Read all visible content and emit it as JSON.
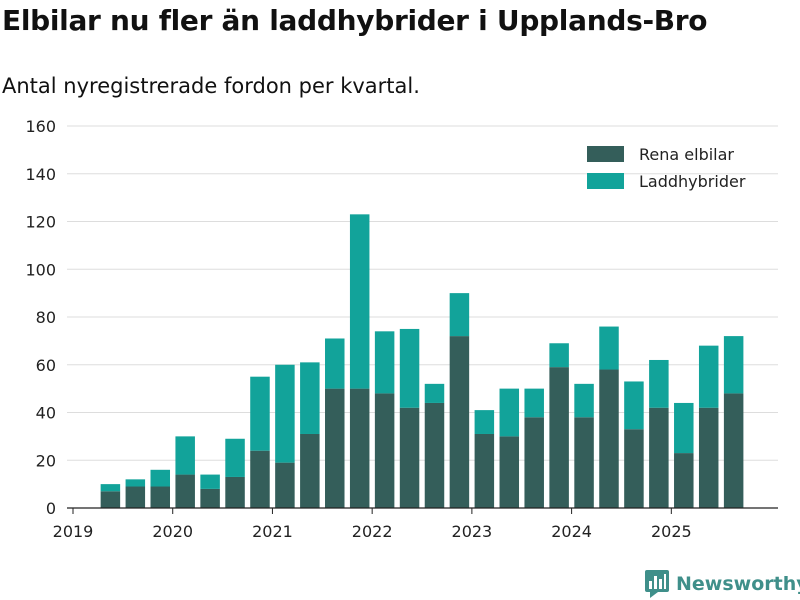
{
  "title": "Elbilar nu fler än laddhybrider i Upplands-Bro",
  "subtitle": "Antal nyregistrerade fordon per kvartal.",
  "brand": {
    "name": "Newsworthy",
    "icon": "newsworthy-logo-icon"
  },
  "colors": {
    "rena_elbilar": "#345e5a",
    "laddhybrider": "#12a39a",
    "grid": "#dddddd",
    "brand": "#3f8f8a"
  },
  "chart_data": {
    "type": "bar",
    "stacked": true,
    "legend_position": "top-right",
    "grid": true,
    "ylim": [
      0,
      160
    ],
    "yticks": [
      0,
      20,
      40,
      60,
      80,
      100,
      120,
      140,
      160
    ],
    "xticks": [
      "2019",
      "2020",
      "2021",
      "2022",
      "2023",
      "2024",
      "2025"
    ],
    "xlabel": "",
    "ylabel": "",
    "categories": [
      "2019 Q2",
      "2019 Q3",
      "2019 Q4",
      "2020 Q1",
      "2020 Q2",
      "2020 Q3",
      "2020 Q4",
      "2021 Q1",
      "2021 Q2",
      "2021 Q3",
      "2021 Q4",
      "2022 Q1",
      "2022 Q2",
      "2022 Q3",
      "2022 Q4",
      "2023 Q1",
      "2023 Q2",
      "2023 Q3",
      "2023 Q4",
      "2024 Q1",
      "2024 Q2",
      "2024 Q3",
      "2024 Q4",
      "2025 Q1",
      "2025 Q2",
      "2025 Q3"
    ],
    "series": [
      {
        "name": "Rena elbilar",
        "values": [
          7,
          9,
          9,
          14,
          8,
          13,
          24,
          19,
          31,
          50,
          50,
          48,
          42,
          44,
          72,
          31,
          30,
          38,
          59,
          38,
          58,
          33,
          42,
          23,
          42,
          48
        ]
      },
      {
        "name": "Laddhybrider",
        "values": [
          3,
          3,
          7,
          16,
          6,
          16,
          31,
          41,
          30,
          21,
          73,
          26,
          33,
          8,
          18,
          10,
          20,
          12,
          10,
          14,
          18,
          20,
          20,
          21,
          26,
          24
        ]
      }
    ]
  }
}
